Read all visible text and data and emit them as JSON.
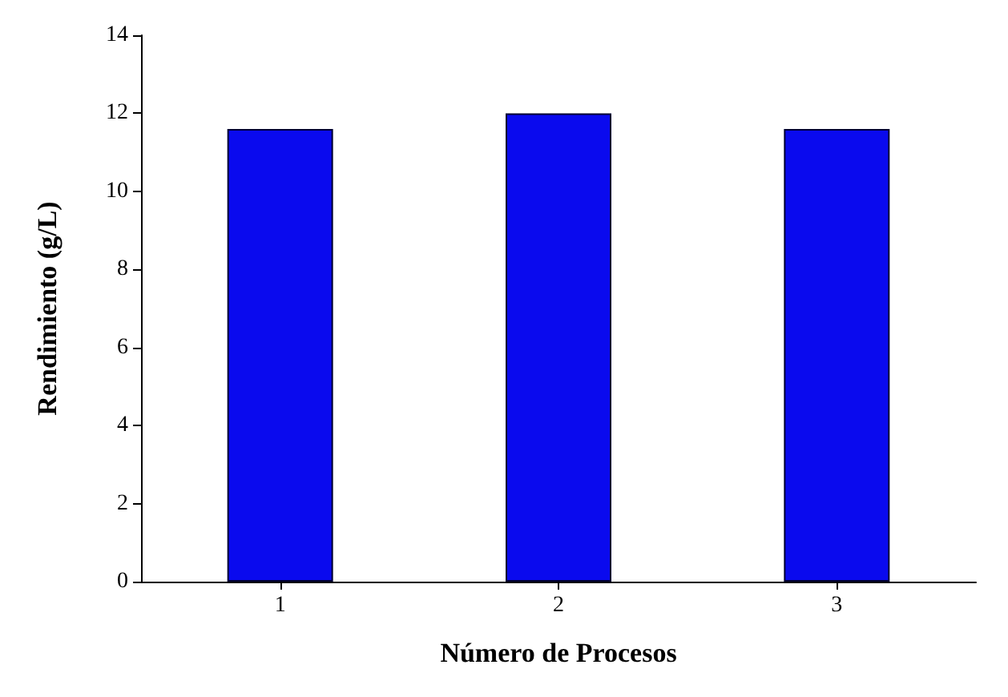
{
  "chart_data": {
    "type": "bar",
    "xlabel": "Número de Procesos",
    "ylabel": "Rendimiento (g/L)",
    "categories": [
      "1",
      "2",
      "3"
    ],
    "values": [
      11.6,
      12.0,
      11.6
    ],
    "color": "#0a0aee",
    "ylim": [
      0,
      14
    ],
    "yticks": [
      0,
      2,
      4,
      6,
      8,
      10,
      12,
      14
    ],
    "grid": false
  }
}
